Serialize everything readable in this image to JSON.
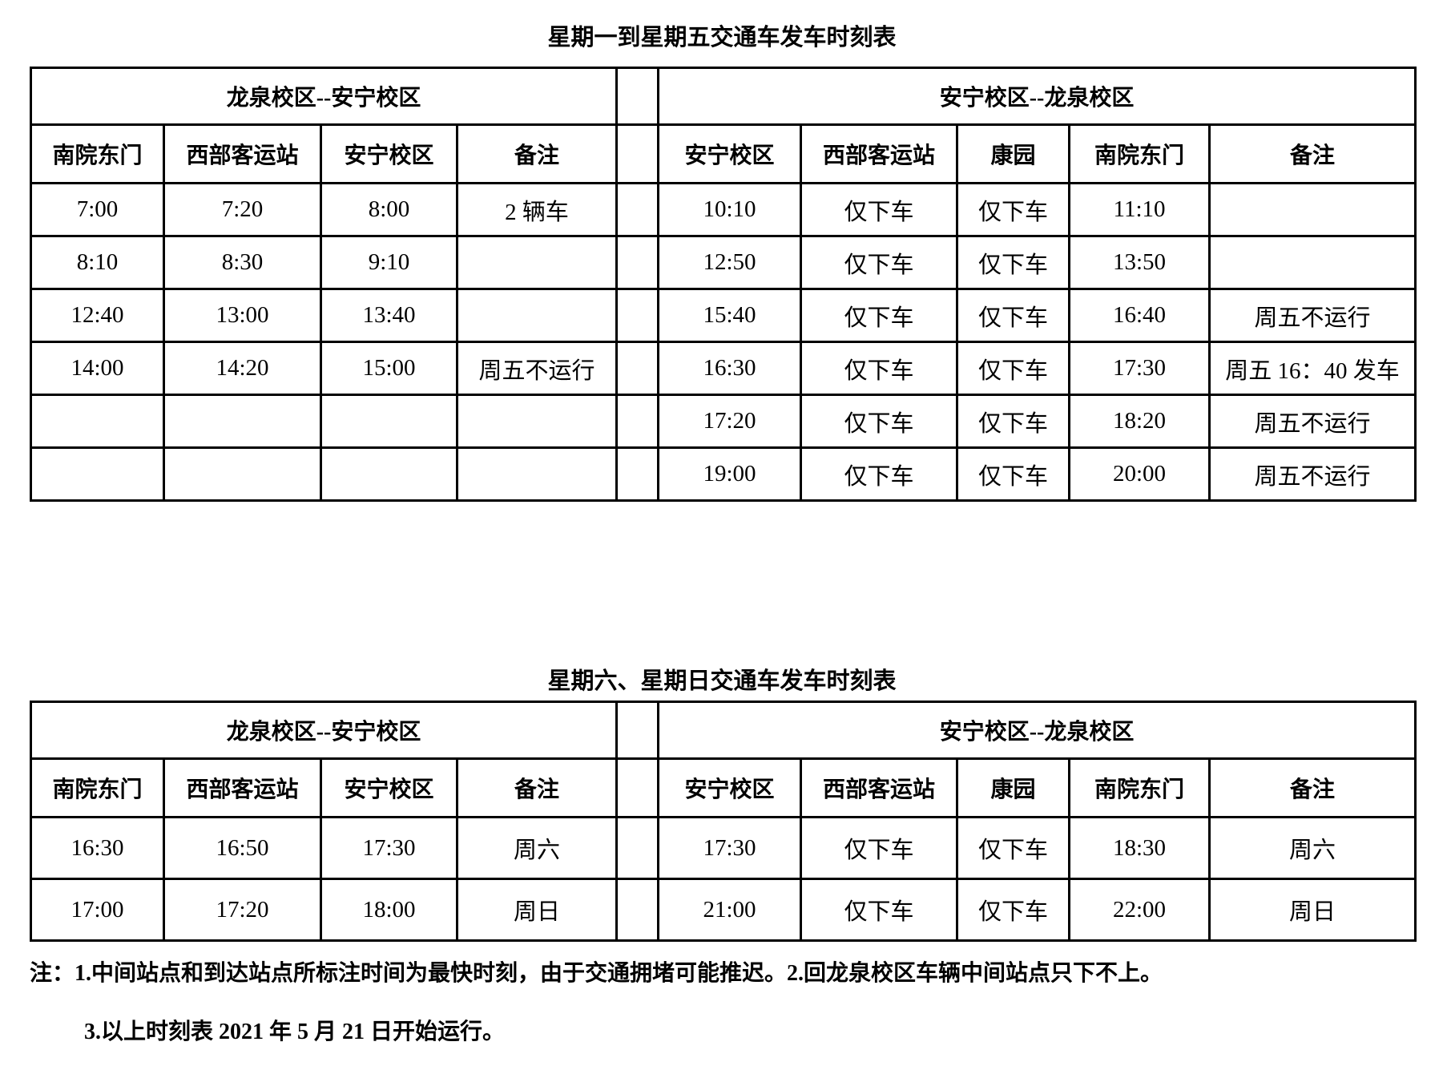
{
  "page": {
    "background": "#ffffff",
    "text_color": "#000000",
    "border_color": "#000000"
  },
  "weekday": {
    "title": "星期一到星期五交通车发车时刻表",
    "left": {
      "route": "龙泉校区--安宁校区",
      "columns": [
        "南院东门",
        "西部客运站",
        "安宁校区",
        "备注"
      ],
      "rows": [
        [
          "7:00",
          "7:20",
          "8:00",
          "2 辆车"
        ],
        [
          "8:10",
          "8:30",
          "9:10",
          ""
        ],
        [
          "12:40",
          "13:00",
          "13:40",
          ""
        ],
        [
          "14:00",
          "14:20",
          "15:00",
          "周五不运行"
        ],
        [
          "",
          "",
          "",
          ""
        ],
        [
          "",
          "",
          "",
          ""
        ]
      ]
    },
    "right": {
      "route": "安宁校区--龙泉校区",
      "columns": [
        "安宁校区",
        "西部客运站",
        "康园",
        "南院东门",
        "备注"
      ],
      "rows": [
        [
          "10:10",
          "仅下车",
          "仅下车",
          "11:10",
          ""
        ],
        [
          "12:50",
          "仅下车",
          "仅下车",
          "13:50",
          ""
        ],
        [
          "15:40",
          "仅下车",
          "仅下车",
          "16:40",
          "周五不运行"
        ],
        [
          "16:30",
          "仅下车",
          "仅下车",
          "17:30",
          "周五 16：40 发车"
        ],
        [
          "17:20",
          "仅下车",
          "仅下车",
          "18:20",
          "周五不运行"
        ],
        [
          "19:00",
          "仅下车",
          "仅下车",
          "20:00",
          "周五不运行"
        ]
      ]
    }
  },
  "weekend": {
    "title": "星期六、星期日交通车发车时刻表",
    "left": {
      "route": "龙泉校区--安宁校区",
      "columns": [
        "南院东门",
        "西部客运站",
        "安宁校区",
        "备注"
      ],
      "rows": [
        [
          "16:30",
          "16:50",
          "17:30",
          "周六"
        ],
        [
          "17:00",
          "17:20",
          "18:00",
          "周日"
        ]
      ]
    },
    "right": {
      "route": "安宁校区--龙泉校区",
      "columns": [
        "安宁校区",
        "西部客运站",
        "康园",
        "南院东门",
        "备注"
      ],
      "rows": [
        [
          "17:30",
          "仅下车",
          "仅下车",
          "18:30",
          "周六"
        ],
        [
          "21:00",
          "仅下车",
          "仅下车",
          "22:00",
          "周日"
        ]
      ]
    }
  },
  "notes": [
    "注：1.中间站点和到达站点所标注时间为最快时刻，由于交通拥堵可能推迟。2.回龙泉校区车辆中间站点只下不上。",
    "3.以上时刻表 2021 年 5 月 21 日开始运行。"
  ]
}
